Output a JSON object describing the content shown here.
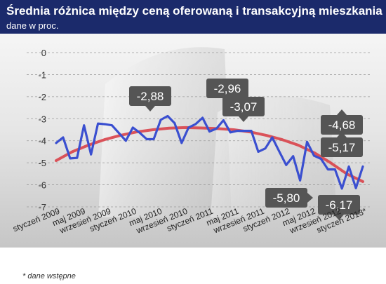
{
  "title": "Średnia różnica między ceną oferowaną i transakcyjną mieszkania",
  "subtitle": "dane  w proc.",
  "footnote": "* dane wstępne",
  "colors": {
    "header": "#1b2a6b",
    "series": "#3a4fd0",
    "trend": "#d9424a",
    "callout": "#555555"
  },
  "chart_data": {
    "type": "line",
    "ylim": [
      -7,
      0
    ],
    "yticks": [
      "0",
      "-1",
      "-2",
      "-3",
      "-4",
      "-5",
      "-6",
      "-7"
    ],
    "grid": true,
    "xtick_labels": [
      "styczeń 2009",
      "maj 2009",
      "wrzesień 2009",
      "styczeń 2010",
      "maj 2010",
      "wrzesień 2010",
      "styczeń 2011",
      "maj 2011",
      "wrzesień 2011",
      "styczeń 2012",
      "maj 2012",
      "wrzesień 2012",
      "styczeń 2013*"
    ],
    "series": [
      {
        "values": [
          -4.1,
          -3.85,
          -4.8,
          -4.78,
          -3.3,
          -4.62,
          -3.22,
          -3.25,
          -3.3,
          -3.65,
          -4.0,
          -3.4,
          -3.64,
          -3.93,
          -3.93,
          -3.05,
          -2.88,
          -3.2,
          -4.1,
          -3.4,
          -3.25,
          -2.96,
          -3.58,
          -3.45,
          -3.07,
          -3.62,
          -3.55,
          -3.55,
          -3.55,
          -4.5,
          -4.35,
          -3.85,
          -4.48,
          -5.1,
          -4.7,
          -5.8,
          -4.05,
          -4.68,
          -4.82,
          -5.3,
          -5.3,
          -6.17,
          -5.17,
          -6.15,
          -5.17
        ]
      },
      {
        "values": [
          -4.9,
          -4.5,
          -4.2,
          -3.95,
          -3.75,
          -3.6,
          -3.5,
          -3.43,
          -3.4,
          -3.42,
          -3.45,
          -3.5,
          -3.6,
          -3.75,
          -3.95,
          -4.2,
          -4.55,
          -5.0,
          -5.5,
          -5.85
        ]
      }
    ],
    "annotations": [
      {
        "label": "-2,88",
        "index": 16
      },
      {
        "label": "-2,96",
        "index": 21
      },
      {
        "label": "-3,07",
        "index": 24
      },
      {
        "label": "-5,80",
        "index": 35
      },
      {
        "label": "-4,68",
        "index": 37
      },
      {
        "label": "-5,17",
        "index": 42
      },
      {
        "label": "-6,17",
        "index": 41
      }
    ]
  }
}
